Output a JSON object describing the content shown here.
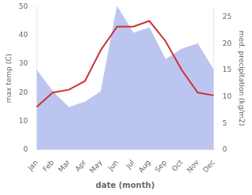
{
  "chart_data": {
    "type": "line",
    "categories": [
      "Jan",
      "Feb",
      "Mar",
      "Apr",
      "May",
      "Jun",
      "Jul",
      "Aug",
      "Sep",
      "Oct",
      "Nov",
      "Dec"
    ],
    "series": [
      {
        "type": "line",
        "color": "#cc3333",
        "values": [
          15,
          20,
          21,
          24,
          35,
          43,
          43,
          45,
          38,
          28,
          20,
          19
        ]
      },
      {
        "type": "area",
        "color": "#bcc5f0",
        "axis": "y2",
        "values": [
          15,
          11,
          8,
          9,
          11,
          27,
          22,
          23,
          17,
          19,
          20,
          15
        ]
      }
    ],
    "xlabel": "date (month)",
    "ylabel": "max temp (C)",
    "y2label": "med. precipitation (kg/m2)",
    "ylim": [
      0,
      50
    ],
    "yticks": [
      0,
      10,
      20,
      30,
      40,
      50
    ],
    "y2lim": [
      0,
      27
    ],
    "y2ticks": [
      0,
      5,
      10,
      15,
      20,
      25
    ],
    "grid": false
  }
}
